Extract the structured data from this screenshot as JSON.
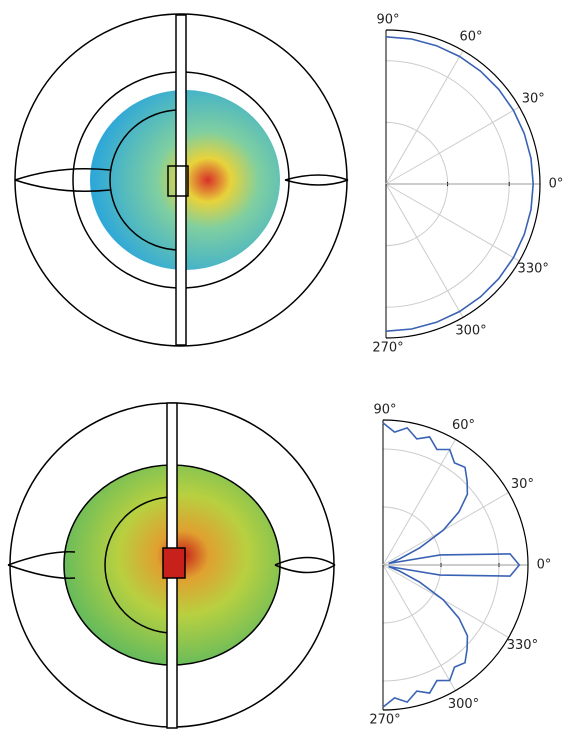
{
  "chart_data": [
    {
      "type": "polar",
      "theta": [
        -90,
        -80,
        -70,
        -60,
        -50,
        -40,
        -30,
        -20,
        -10,
        0,
        10,
        20,
        30,
        40,
        50,
        60,
        70,
        80,
        90
      ],
      "series": [
        {
          "color": "#3a62b4",
          "values": [
            2.39,
            2.39,
            2.39,
            2.39,
            2.39,
            2.39,
            2.39,
            2.39,
            2.39,
            2.39,
            2.39,
            2.39,
            2.39,
            2.39,
            2.39,
            2.39,
            2.39,
            2.39,
            2.39
          ]
        }
      ],
      "rlim": [
        0,
        2.5
      ],
      "rticks": [
        1,
        2
      ],
      "thetaticks": [
        {
          "value": 90,
          "label": "90°"
        },
        {
          "value": 60,
          "label": "60°"
        },
        {
          "value": 30,
          "label": "30°"
        },
        {
          "value": 0,
          "label": "0°"
        },
        {
          "value": -30,
          "label": "330°"
        },
        {
          "value": -60,
          "label": "300°"
        },
        {
          "value": -90,
          "label": "270°"
        }
      ]
    },
    {
      "type": "polar",
      "theta": [
        -90,
        -85,
        -80,
        -75,
        -70,
        -65,
        -60,
        -55,
        -50,
        -45,
        -40,
        -35,
        -30,
        -25,
        -20,
        -15,
        -10,
        -5,
        0,
        5,
        10,
        15,
        20,
        25,
        30,
        35,
        40,
        45,
        50,
        55,
        60,
        65,
        70,
        75,
        80,
        85,
        90
      ],
      "series": [
        {
          "color": "#3a62b4",
          "values": [
            2.45,
            2.3,
            2.4,
            2.25,
            2.35,
            2.2,
            2.3,
            2.15,
            2.2,
            2.05,
            1.9,
            1.6,
            1.2,
            0.7,
            0.3,
            0.1,
            1.0,
            2.2,
            2.35,
            2.2,
            1.0,
            0.1,
            0.3,
            0.7,
            1.2,
            1.6,
            1.9,
            2.05,
            2.2,
            2.15,
            2.3,
            2.2,
            2.35,
            2.25,
            2.4,
            2.3,
            2.45
          ]
        }
      ],
      "rlim": [
        0,
        2.5
      ],
      "rticks": [
        1,
        2
      ],
      "thetaticks": [
        {
          "value": 90,
          "label": "90°"
        },
        {
          "value": 60,
          "label": "60°"
        },
        {
          "value": 30,
          "label": "30°"
        },
        {
          "value": 0,
          "label": "0°"
        },
        {
          "value": -30,
          "label": "330°"
        },
        {
          "value": -60,
          "label": "300°"
        },
        {
          "value": -90,
          "label": "270°"
        }
      ]
    }
  ]
}
